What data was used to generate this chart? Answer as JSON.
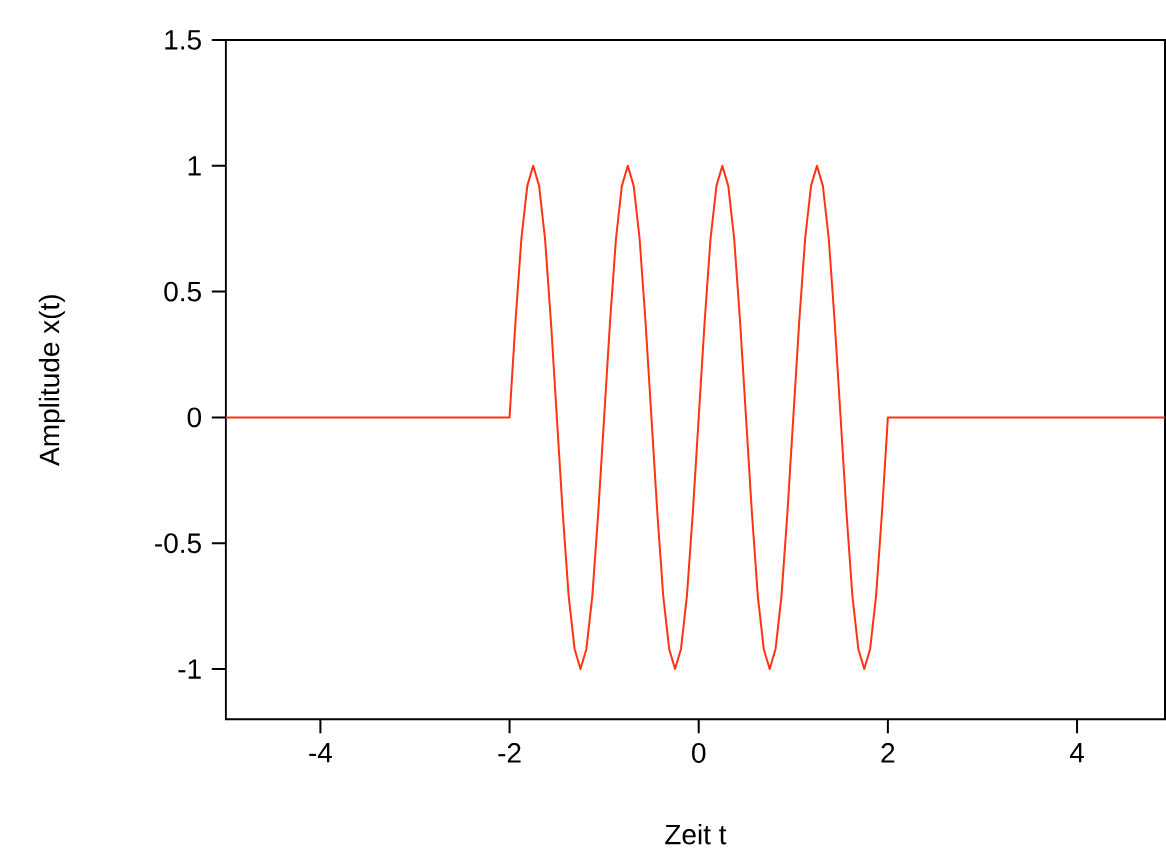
{
  "chart_data": {
    "type": "line",
    "xlabel": "Zeit t",
    "ylabel": "Amplitude x(t)",
    "xlim": [
      -5,
      4.93
    ],
    "ylim": [
      -1.2,
      1.5
    ],
    "xticks": [
      -4,
      -2,
      0,
      2,
      4
    ],
    "yticks": [
      -1,
      -0.5,
      0,
      0.5,
      1,
      1.5
    ],
    "grid": false,
    "marker": "none",
    "line_style": "solid",
    "x": [
      -5,
      -2,
      -1.9375,
      -1.875,
      -1.8125,
      -1.75,
      -1.6875,
      -1.625,
      -1.5625,
      -1.5,
      -1.4375,
      -1.375,
      -1.3125,
      -1.25,
      -1.1875,
      -1.125,
      -1.0625,
      -1,
      -0.9375,
      -0.875,
      -0.8125,
      -0.75,
      -0.6875,
      -0.625,
      -0.5625,
      -0.5,
      -0.4375,
      -0.375,
      -0.3125,
      -0.25,
      -0.1875,
      -0.125,
      -0.0625,
      0,
      0.0625,
      0.125,
      0.1875,
      0.25,
      0.3125,
      0.375,
      0.4375,
      0.5,
      0.5625,
      0.625,
      0.6875,
      0.75,
      0.8125,
      0.875,
      0.9375,
      1,
      1.0625,
      1.125,
      1.1875,
      1.25,
      1.3125,
      1.375,
      1.4375,
      1.5,
      1.5625,
      1.625,
      1.6875,
      1.75,
      1.8125,
      1.875,
      1.9375,
      2,
      4.93
    ],
    "series": [
      {
        "color": "#ff3311",
        "values": [
          0,
          0,
          0.38,
          0.71,
          0.92,
          1,
          0.92,
          0.71,
          0.38,
          0,
          -0.38,
          -0.71,
          -0.92,
          -1,
          -0.92,
          -0.71,
          -0.38,
          0,
          0.38,
          0.71,
          0.92,
          1,
          0.92,
          0.71,
          0.38,
          0,
          -0.38,
          -0.71,
          -0.92,
          -1,
          -0.92,
          -0.71,
          -0.38,
          0,
          0.38,
          0.71,
          0.92,
          1,
          0.92,
          0.71,
          0.38,
          0,
          -0.38,
          -0.71,
          -0.92,
          -1,
          -0.92,
          -0.71,
          -0.38,
          0,
          0.38,
          0.71,
          0.92,
          1,
          0.92,
          0.71,
          0.38,
          0,
          -0.38,
          -0.71,
          -0.92,
          -1,
          -0.92,
          -0.71,
          -0.38,
          0,
          0
        ]
      }
    ]
  }
}
